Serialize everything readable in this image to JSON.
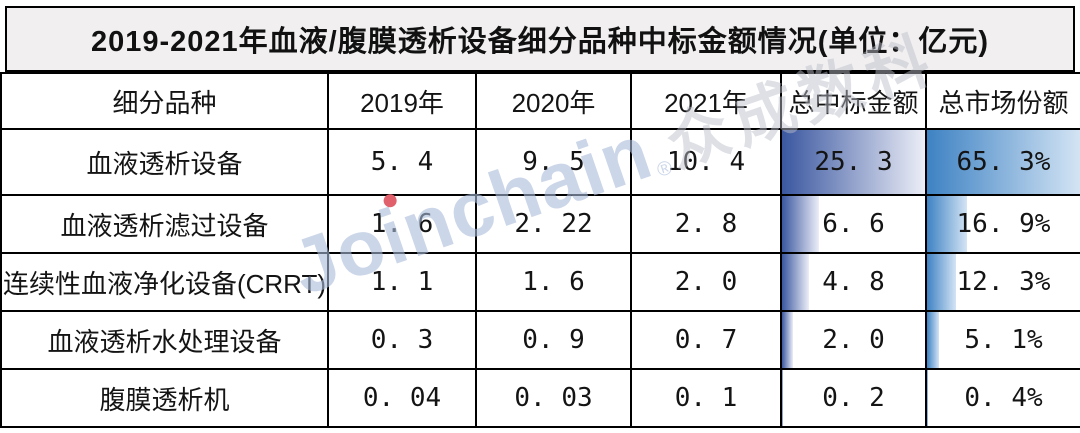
{
  "title": "2019-2021年血液/腹膜透析设备细分品种中标金额情况(单位：亿元)",
  "table": {
    "columns": [
      "细分品种",
      "2019年",
      "2020年",
      "2021年",
      "总中标金额",
      "总市场份额"
    ],
    "rows": [
      {
        "name": "血液透析设备",
        "y2019": "5. 4",
        "y2020": "9. 5",
        "y2021": "10. 4",
        "total": "25. 3",
        "share": "65. 3%",
        "total_value": 25.3,
        "share_value": 65.3
      },
      {
        "name": "血液透析滤过设备",
        "y2019": "1. 6",
        "y2020": "2. 22",
        "y2021": "2. 8",
        "total": "6. 6",
        "share": "16. 9%",
        "total_value": 6.6,
        "share_value": 16.9
      },
      {
        "name": "连续性血液净化设备(CRRT)",
        "y2019": "1. 1",
        "y2020": "1. 6",
        "y2021": "2. 0",
        "total": "4. 8",
        "share": "12. 3%",
        "total_value": 4.8,
        "share_value": 12.3
      },
      {
        "name": "血液透析水处理设备",
        "y2019": "0. 3",
        "y2020": "0. 9",
        "y2021": "0. 7",
        "total": "2. 0",
        "share": "5. 1%",
        "total_value": 2.0,
        "share_value": 5.1
      },
      {
        "name": "腹膜透析机",
        "y2019": "0. 04",
        "y2020": "0. 03",
        "y2021": "0. 1",
        "total": "0. 2",
        "share": "0. 4%",
        "total_value": 0.2,
        "share_value": 0.4
      }
    ],
    "bar_max_total": 25.3,
    "bar_max_share": 65.3,
    "bar_colors": {
      "total_from": "#3a57a0",
      "total_to": "#eceef7",
      "share_from": "#3e82c3",
      "share_to": "#d3e4f4"
    }
  },
  "watermark": {
    "brand": "Joinchain",
    "reg": "®",
    "cjk": "众成数科",
    "dot_color": "#e0606c"
  },
  "chart_data": {
    "type": "table",
    "title": "2019-2021年血液/腹膜透析设备细分品种中标金额情况(单位：亿元)",
    "columns": [
      "细分品种",
      "2019年",
      "2020年",
      "2021年",
      "总中标金额",
      "总市场份额"
    ],
    "rows": [
      [
        "血液透析设备",
        5.4,
        9.5,
        10.4,
        25.3,
        "65.3%"
      ],
      [
        "血液透析滤过设备",
        1.6,
        2.22,
        2.8,
        6.6,
        "16.9%"
      ],
      [
        "连续性血液净化设备(CRRT)",
        1.1,
        1.6,
        2.0,
        4.8,
        "12.3%"
      ],
      [
        "血液透析水处理设备",
        0.3,
        0.9,
        0.7,
        2.0,
        "5.1%"
      ],
      [
        "腹膜透析机",
        0.04,
        0.03,
        0.1,
        0.2,
        "0.4%"
      ]
    ],
    "databars": {
      "total_column": {
        "values": [
          25.3,
          6.6,
          4.8,
          2.0,
          0.2
        ],
        "max": 25.3,
        "color": "#3a57a0",
        "style": "gradient-left-to-right"
      },
      "share_column": {
        "values": [
          65.3,
          16.9,
          12.3,
          5.1,
          0.4
        ],
        "max": 65.3,
        "color": "#3e82c3",
        "style": "gradient-left-to-right"
      }
    },
    "unit": "亿元",
    "legend_position": "none",
    "grid": true
  }
}
